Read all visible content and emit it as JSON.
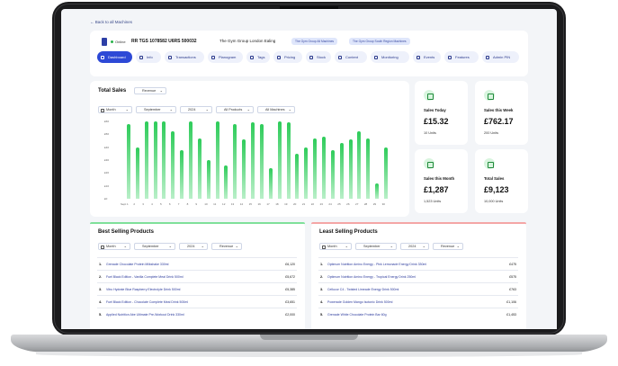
{
  "back_link": "← Back to all Machines",
  "machine": {
    "status": "Online",
    "name": "RR TGS 1078582 U6RS 500032",
    "location": "The Gym Group London Ealing",
    "chips": [
      "The Gym Group All Machines",
      "The Gym Group South Region Machines"
    ]
  },
  "tabs": [
    {
      "label": "Dashboard",
      "icon": "dashboard-icon"
    },
    {
      "label": "Info",
      "icon": "info-icon"
    },
    {
      "label": "Transactions",
      "icon": "list-icon"
    },
    {
      "label": "Planogram",
      "icon": "grid-icon"
    },
    {
      "label": "Tags",
      "icon": "tag-icon"
    },
    {
      "label": "Pricing",
      "icon": "price-icon"
    },
    {
      "label": "Stock",
      "icon": "box-icon"
    },
    {
      "label": "Content",
      "icon": "image-icon"
    },
    {
      "label": "Monitoring",
      "icon": "monitor-icon"
    },
    {
      "label": "Events",
      "icon": "calendar-icon"
    },
    {
      "label": "Features",
      "icon": "star-icon"
    },
    {
      "label": "Admin PIN",
      "icon": "lock-icon"
    }
  ],
  "total_sales": {
    "title": "Total Sales",
    "metric": "Revenue",
    "filters": {
      "period": "Month",
      "month": "September",
      "year": "2024",
      "products": "All Products",
      "machines": "All Machines"
    }
  },
  "chart_data": {
    "type": "bar",
    "categories": [
      "Sept 1",
      "2",
      "3",
      "4",
      "5",
      "6",
      "7",
      "8",
      "9",
      "10",
      "11",
      "12",
      "13",
      "14",
      "15",
      "16",
      "17",
      "18",
      "19",
      "20",
      "21",
      "22",
      "23",
      "24",
      "25",
      "26",
      "27",
      "28",
      "29",
      "30"
    ],
    "values": [
      58,
      40,
      60,
      60,
      60,
      52,
      38,
      60,
      47,
      30,
      60,
      26,
      58,
      46,
      59,
      58,
      24,
      60,
      59,
      35,
      40,
      47,
      48,
      38,
      43,
      46,
      52,
      47,
      12,
      40
    ],
    "y_ticks": [
      "£60",
      "£50",
      "£40",
      "£30",
      "£20",
      "£10",
      "£0"
    ],
    "ylim": [
      0,
      60
    ],
    "color": "#2ecc5a"
  },
  "stats": [
    {
      "label": "Sales Today",
      "value": "£15.32",
      "units": "10 Units"
    },
    {
      "label": "Sales this Week",
      "value": "£762.17",
      "units": "200 Units"
    },
    {
      "label": "Sales this Month",
      "value": "£1,287",
      "units": "1,523 Units"
    },
    {
      "label": "Total Sales",
      "value": "£9,123",
      "units": "10,000 Units"
    }
  ],
  "best": {
    "title": "Best Selling Products",
    "filters": {
      "period": "Month",
      "month": "September",
      "year": "2024",
      "metric": "Revenue"
    },
    "rows": [
      {
        "n": "1.",
        "product": "Grenade Chocolate Protein Milkshake 330ml",
        "value": "£6,120"
      },
      {
        "n": "2.",
        "product": "Fuel Black Edition - Vanilla Complete Meal Drink 500ml",
        "value": "£5,672"
      },
      {
        "n": "3.",
        "product": "Vitro Hydrate Blue Raspberry Electrolyte Drink 500ml",
        "value": "£5,385"
      },
      {
        "n": "4.",
        "product": "Fuel Black Edition - Chocolate Complete Meal Drink 500ml",
        "value": "£3,651"
      },
      {
        "n": "5.",
        "product": "Applied Nutrition Abe Ultimate Pre-Workout Drink 330ml",
        "value": "£2,000"
      }
    ]
  },
  "least": {
    "title": "Least Selling Products",
    "filters": {
      "period": "Month",
      "month": "September",
      "year": "2024",
      "metric": "Revenue"
    },
    "rows": [
      {
        "n": "1.",
        "product": "Optimum Nutrition Amino Energy - Pink Lemonade Energy Drink 330ml",
        "value": "£475"
      },
      {
        "n": "2.",
        "product": "Optimum Nutrition Amino Energy - Tropical Energy Drink 250ml",
        "value": "£575"
      },
      {
        "n": "3.",
        "product": "Cellucor C4 - Twisted Limeade Energy Drink 500ml",
        "value": "£763"
      },
      {
        "n": "4.",
        "product": "Powerade Golden Mango Isotonic Drink 500ml",
        "value": "£1,106"
      },
      {
        "n": "5.",
        "product": "Grenade White Chocolate Protein Bar 60g",
        "value": "£1,453"
      }
    ]
  }
}
